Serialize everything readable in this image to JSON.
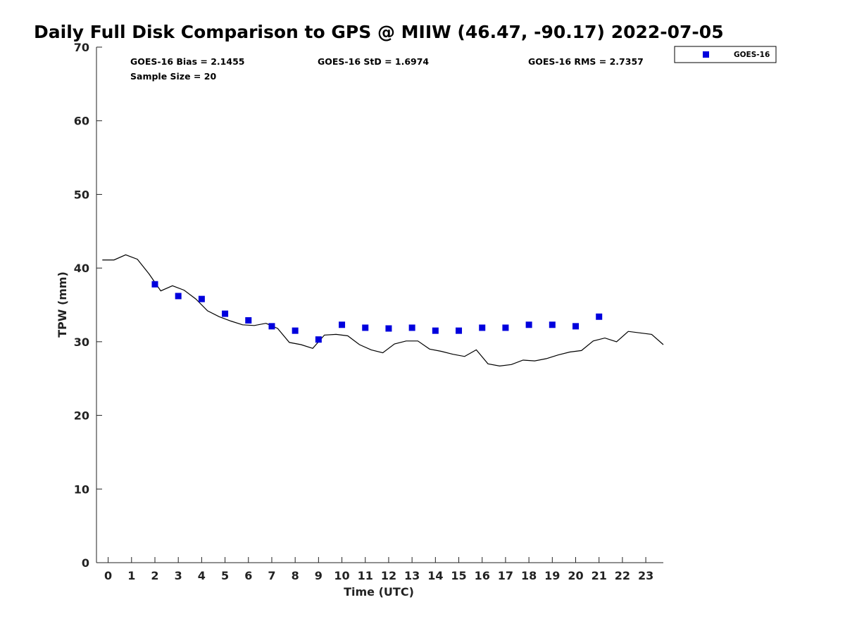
{
  "chart_data": {
    "type": "scatter",
    "title": "Daily Full Disk Comparison to GPS @ MIIW (46.47, -90.17) 2022-07-05",
    "xlabel": "Time (UTC)",
    "ylabel": "TPW (mm)",
    "xlim": [
      -0.5,
      23.75
    ],
    "ylim": [
      0,
      70
    ],
    "xticks": [
      0,
      1,
      2,
      3,
      4,
      5,
      6,
      7,
      8,
      9,
      10,
      11,
      12,
      13,
      14,
      15,
      16,
      17,
      18,
      19,
      20,
      21,
      22,
      23
    ],
    "yticks": [
      0,
      10,
      20,
      30,
      40,
      50,
      60,
      70
    ],
    "grid": false,
    "legend_position": "top-right, outside plot",
    "stats": {
      "bias": "GOES-16 Bias = 2.1455",
      "std": "GOES-16 StD = 1.6974",
      "rms": "GOES-16 RMS = 2.7357",
      "sample": "Sample Size = 20"
    },
    "series": [
      {
        "name": "GOES-16",
        "kind": "scatter",
        "marker": "square",
        "color": "#0000dd",
        "x": [
          2,
          3,
          4,
          5,
          6,
          7,
          8,
          9,
          10,
          11,
          12,
          13,
          14,
          15,
          16,
          17,
          18,
          19,
          20,
          21
        ],
        "y": [
          37.8,
          36.2,
          35.8,
          33.8,
          32.9,
          32.1,
          31.5,
          30.3,
          32.3,
          31.9,
          31.8,
          31.9,
          31.5,
          31.5,
          31.9,
          31.9,
          32.3,
          32.3,
          32.1,
          33.4
        ]
      },
      {
        "kind": "line",
        "color": "#000000",
        "x": [
          -0.25,
          0.25,
          0.75,
          1.25,
          1.75,
          2.25,
          2.75,
          3.25,
          3.75,
          4.25,
          4.75,
          5.25,
          5.75,
          6.25,
          6.75,
          7.25,
          7.75,
          8.25,
          8.75,
          9.25,
          9.75,
          10.25,
          10.75,
          11.25,
          11.75,
          12.25,
          12.75,
          13.25,
          13.75,
          14.25,
          14.75,
          15.25,
          15.75,
          16.25,
          16.75,
          17.25,
          17.75,
          18.25,
          18.75,
          19.25,
          19.75,
          20.25,
          20.75,
          21.25,
          21.75,
          22.25,
          22.75,
          23.25,
          23.75
        ],
        "y": [
          41.1,
          41.1,
          41.8,
          41.2,
          39.2,
          36.9,
          37.6,
          37.0,
          35.8,
          34.2,
          33.4,
          32.8,
          32.3,
          32.2,
          32.5,
          31.8,
          29.9,
          29.6,
          29.1,
          30.9,
          31.0,
          30.8,
          29.6,
          28.9,
          28.5,
          29.7,
          30.1,
          30.1,
          29.0,
          28.7,
          28.3,
          28.0,
          28.9,
          27.0,
          26.7,
          26.9,
          27.5,
          27.4,
          27.7,
          28.2,
          28.6,
          28.8,
          30.1,
          30.5,
          30.0,
          31.4,
          31.2,
          31.0,
          29.6
        ]
      }
    ]
  }
}
